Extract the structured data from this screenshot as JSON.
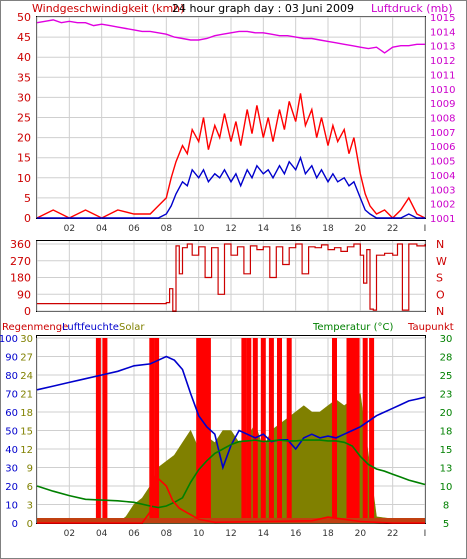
{
  "chart_data": [
    {
      "type": "line",
      "title": "24 hour graph day : 03 Juni 2009",
      "left_axis_label": "Windgeschwindigkeit (kmh)",
      "right_axis_label": "Luftdruck (mb)",
      "left_ylim": [
        0,
        50
      ],
      "right_ylim": [
        1001,
        1015
      ],
      "left_ticks": [
        "0",
        "5",
        "10",
        "15",
        "20",
        "25",
        "30",
        "35",
        "40",
        "45",
        "50"
      ],
      "right_ticks": [
        "1001",
        "1002",
        "1003",
        "1004",
        "1005",
        "1006",
        "1007",
        "1008",
        "1009",
        "1010",
        "1011",
        "1012",
        "1013",
        "1014",
        "1015"
      ],
      "x_ticks": [
        "02",
        "04",
        "06",
        "08",
        "10",
        "12",
        "14",
        "16",
        "18",
        "20",
        "22",
        "I"
      ],
      "x_hours": [
        0,
        2,
        4,
        6,
        8,
        10,
        12,
        14,
        16,
        18,
        20,
        22,
        24
      ],
      "grid": true,
      "colors": {
        "gusts": "#ff0000",
        "wind": "#0000cc",
        "pressure": "#e000e0",
        "axis_left": "#cc0000",
        "axis_right": "#cc00cc"
      },
      "series": [
        {
          "name": "Luftdruck",
          "axis": "right",
          "color": "#e000e0",
          "x": [
            0,
            0.5,
            1,
            1.5,
            2,
            2.5,
            3,
            3.5,
            4,
            4.5,
            5,
            5.5,
            6,
            6.5,
            7,
            7.5,
            8,
            8.5,
            9,
            9.5,
            10,
            10.5,
            11,
            11.5,
            12,
            12.5,
            13,
            13.5,
            14,
            14.5,
            15,
            15.5,
            16,
            16.5,
            17,
            17.5,
            18,
            18.5,
            19,
            19.5,
            20,
            20.5,
            21,
            21.5,
            22,
            22.5,
            23,
            23.5,
            24
          ],
          "y": [
            1014.6,
            1014.7,
            1014.8,
            1014.6,
            1014.7,
            1014.6,
            1014.6,
            1014.4,
            1014.5,
            1014.4,
            1014.3,
            1014.2,
            1014.1,
            1014.0,
            1014.0,
            1013.9,
            1013.8,
            1013.6,
            1013.5,
            1013.4,
            1013.4,
            1013.5,
            1013.7,
            1013.8,
            1013.9,
            1014.0,
            1014.0,
            1013.9,
            1013.9,
            1013.8,
            1013.7,
            1013.7,
            1013.6,
            1013.5,
            1013.5,
            1013.4,
            1013.3,
            1013.2,
            1013.1,
            1013.0,
            1012.9,
            1012.8,
            1012.9,
            1012.5,
            1012.9,
            1013.0,
            1013.0,
            1013.1,
            1013.1
          ]
        },
        {
          "name": "Windböen",
          "axis": "left",
          "color": "#ff0000",
          "x": [
            0,
            1,
            2,
            3,
            4,
            5,
            6,
            7,
            7.5,
            8,
            8.3,
            8.6,
            9,
            9.3,
            9.6,
            10,
            10.3,
            10.6,
            11,
            11.3,
            11.6,
            12,
            12.3,
            12.6,
            13,
            13.3,
            13.6,
            14,
            14.3,
            14.6,
            15,
            15.3,
            15.6,
            16,
            16.3,
            16.6,
            17,
            17.3,
            17.6,
            18,
            18.3,
            18.6,
            19,
            19.3,
            19.6,
            20,
            20.3,
            20.6,
            21,
            21.5,
            22,
            22.5,
            23,
            23.5,
            24
          ],
          "y": [
            0,
            2,
            0,
            2,
            0,
            2,
            1,
            1,
            3,
            5,
            10,
            14,
            18,
            16,
            22,
            19,
            25,
            17,
            23,
            20,
            26,
            19,
            24,
            18,
            27,
            21,
            28,
            20,
            25,
            19,
            27,
            22,
            29,
            24,
            31,
            23,
            27,
            20,
            25,
            18,
            23,
            19,
            22,
            16,
            20,
            11,
            6,
            3,
            1,
            2,
            0,
            2,
            5,
            1,
            0
          ]
        },
        {
          "name": "Windgeschwindigkeit",
          "axis": "left",
          "color": "#0000cc",
          "x": [
            0,
            1,
            2,
            3,
            4,
            5,
            6,
            7,
            7.5,
            8,
            8.3,
            8.6,
            9,
            9.3,
            9.6,
            10,
            10.3,
            10.6,
            11,
            11.3,
            11.6,
            12,
            12.3,
            12.6,
            13,
            13.3,
            13.6,
            14,
            14.3,
            14.6,
            15,
            15.3,
            15.6,
            16,
            16.3,
            16.6,
            17,
            17.3,
            17.6,
            18,
            18.3,
            18.6,
            19,
            19.3,
            19.6,
            20,
            20.3,
            20.6,
            21,
            21.5,
            22,
            22.5,
            23,
            23.5,
            24
          ],
          "y": [
            0,
            0,
            0,
            0,
            0,
            0,
            0,
            0,
            0,
            1,
            3,
            6,
            9,
            8,
            12,
            10,
            12,
            9,
            11,
            10,
            12,
            9,
            11,
            8,
            12,
            10,
            13,
            11,
            12,
            10,
            13,
            11,
            14,
            12,
            15,
            11,
            13,
            10,
            12,
            9,
            11,
            9,
            10,
            8,
            9,
            5,
            2,
            1,
            0,
            0,
            0,
            0,
            1,
            0,
            0
          ]
        }
      ]
    },
    {
      "type": "line",
      "title": "",
      "left_ticks": [
        "0",
        "90",
        "180",
        "270",
        "360"
      ],
      "right_labels": [
        "N",
        "W",
        "S",
        "O",
        "N"
      ],
      "ylim": [
        0,
        360
      ],
      "x_hours": [
        0,
        2,
        4,
        6,
        8,
        10,
        12,
        14,
        16,
        18,
        20,
        22,
        24
      ],
      "grid": true,
      "series": [
        {
          "name": "Windrichtung",
          "color": "#cc0000",
          "x": [
            0,
            7.5,
            7.8,
            8.0,
            8.2,
            8.4,
            8.6,
            8.8,
            9.0,
            9.3,
            9.6,
            10,
            10.4,
            10.8,
            11.2,
            11.6,
            12,
            12.4,
            12.8,
            13.2,
            13.6,
            14,
            14.4,
            14.8,
            15.2,
            15.6,
            16,
            16.4,
            16.8,
            17.2,
            17.6,
            18,
            18.4,
            18.8,
            19.2,
            19.6,
            20,
            20.2,
            20.4,
            20.6,
            20.8,
            21,
            21.5,
            22,
            22.3,
            22.6,
            23,
            23.5,
            24
          ],
          "y": [
            40,
            40,
            40,
            45,
            120,
            0,
            350,
            200,
            340,
            360,
            300,
            345,
            180,
            340,
            90,
            360,
            300,
            345,
            200,
            350,
            330,
            345,
            180,
            345,
            250,
            340,
            360,
            200,
            345,
            340,
            355,
            330,
            340,
            320,
            345,
            360,
            300,
            150,
            330,
            10,
            5,
            300,
            310,
            300,
            360,
            5,
            360,
            350,
            360
          ]
        }
      ]
    },
    {
      "type": "bar",
      "title": "",
      "labels": {
        "rain": "Regenmenge",
        "humidity": "Luftfeuchte",
        "solar": "Solar",
        "temperature": "Temperatur (°C)",
        "dewpoint": "Taupunkt"
      },
      "left_ticks_humidity": [
        "0",
        "10",
        "20",
        "30",
        "40",
        "50",
        "60",
        "70",
        "80",
        "90",
        "100"
      ],
      "left_ticks_solar": [
        "0",
        "3",
        "6",
        "9",
        "12",
        "15",
        "18",
        "21",
        "24",
        "27",
        "30"
      ],
      "right_ticks_temp": [
        "5",
        "8",
        "10",
        "13",
        "15",
        "18",
        "20",
        "23",
        "25",
        "28",
        "30"
      ],
      "x_ticks": [
        "02",
        "04",
        "06",
        "08",
        "10",
        "12",
        "14",
        "16",
        "18",
        "20",
        "22",
        "I"
      ],
      "ylim_humidity": [
        0,
        100
      ],
      "ylim_temp": [
        5,
        30
      ],
      "grid": true,
      "colors": {
        "rain": "#ff0000",
        "humidity": "#0000cc",
        "solar": "#808000",
        "temperature": "#008000",
        "dewpoint": "#ff0000"
      },
      "rain_hours": [
        3.8,
        4.2,
        7.1,
        7.4,
        10.0,
        10.3,
        10.6,
        12.8,
        13.1,
        13.5,
        14.0,
        14.5,
        15.0,
        15.6,
        18.4,
        19.3,
        19.6,
        19.8,
        20.3,
        20.7
      ],
      "solar": {
        "x": [
          0,
          5,
          5.5,
          6,
          6.5,
          7,
          7.5,
          8,
          8.5,
          9,
          9.5,
          10,
          10.5,
          11,
          11.5,
          12,
          12.5,
          13,
          13.5,
          14,
          14.5,
          15,
          15.5,
          16,
          16.5,
          17,
          17.5,
          18,
          18.5,
          19,
          19.5,
          20,
          20.5,
          21,
          24
        ],
        "y": [
          0,
          0,
          1,
          3,
          4,
          6,
          9,
          10,
          11,
          13,
          15,
          12,
          14,
          13,
          15,
          15,
          13,
          14,
          16,
          12,
          15,
          16,
          17,
          18,
          19,
          18,
          18,
          19,
          20,
          19,
          20,
          21,
          11,
          1,
          0
        ]
      },
      "series": [
        {
          "name": "Luftfeuchte",
          "color": "#0000cc",
          "x": [
            0,
            1,
            2,
            3,
            4,
            5,
            6,
            7,
            7.5,
            8,
            8.5,
            9,
            9.5,
            10,
            10.5,
            11,
            11.5,
            12,
            12.5,
            13,
            13.5,
            14,
            14.5,
            15,
            15.5,
            16,
            16.5,
            17,
            17.5,
            18,
            18.5,
            19,
            19.5,
            20,
            20.5,
            21,
            21.5,
            22,
            22.5,
            23,
            23.5,
            24
          ],
          "y": [
            72,
            74,
            76,
            78,
            80,
            82,
            85,
            86,
            88,
            90,
            88,
            83,
            70,
            58,
            52,
            48,
            30,
            42,
            50,
            48,
            46,
            48,
            44,
            45,
            45,
            40,
            46,
            48,
            46,
            47,
            46,
            48,
            50,
            52,
            55,
            58,
            60,
            62,
            64,
            66,
            67,
            68
          ]
        },
        {
          "name": "Temperatur",
          "color": "#008000",
          "x": [
            0,
            1,
            2,
            3,
            4,
            5,
            6,
            7,
            7.5,
            8,
            8.5,
            9,
            9.5,
            10,
            10.5,
            11,
            11.5,
            12,
            12.5,
            13,
            13.5,
            14,
            14.5,
            15,
            15.5,
            16,
            16.5,
            17,
            17.5,
            18,
            18.5,
            19,
            19.5,
            20,
            20.5,
            21,
            21.5,
            22,
            22.5,
            23,
            23.5,
            24
          ],
          "y": [
            10.0,
            9.3,
            8.7,
            8.2,
            8.1,
            8.0,
            7.8,
            7.3,
            7.1,
            7.3,
            7.8,
            8.4,
            10.5,
            12.2,
            13.4,
            14.4,
            15.0,
            15.6,
            16.0,
            16.1,
            16.2,
            16.0,
            16.1,
            16.2,
            16.1,
            16.1,
            16.2,
            16.2,
            16.2,
            16.1,
            16.1,
            15.9,
            15.4,
            14.0,
            12.9,
            12.3,
            12.0,
            11.6,
            11.2,
            10.8,
            10.5,
            10.2
          ]
        },
        {
          "name": "Taupunkt",
          "color": "#ff0000",
          "x": [
            0,
            6.5,
            7,
            7.2,
            7.5,
            8,
            8.4,
            8.8,
            9.2,
            9.6,
            10,
            10.5,
            11,
            14,
            17,
            18,
            19,
            20,
            21,
            22,
            24
          ],
          "y": [
            5,
            5,
            6.5,
            9,
            11,
            10,
            8,
            7,
            6.5,
            6,
            5.5,
            5.3,
            5.1,
            5.2,
            5.3,
            5.8,
            5.5,
            5.2,
            5.1,
            5.0,
            5.0
          ]
        }
      ]
    }
  ]
}
